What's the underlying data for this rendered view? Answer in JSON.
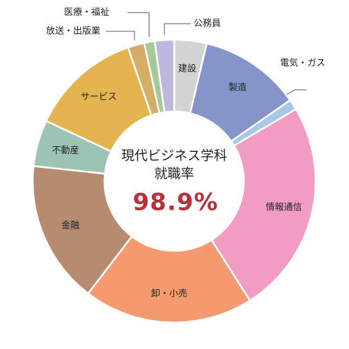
{
  "chart_data": {
    "type": "pie",
    "style": "donut",
    "start_angle_deg": 0,
    "direction": "clockwise",
    "center": {
      "title_line1": "現代ビジネス学科",
      "title_line2": "就職率",
      "rate": "98.9%",
      "rate_color": "#b5323a"
    },
    "slices": [
      {
        "label": "建設",
        "value": 3.7,
        "color": "#d3d3d3",
        "label_pos": "inside"
      },
      {
        "label": "製造",
        "value": 11.6,
        "color": "#8595c9",
        "label_pos": "inside"
      },
      {
        "label": "電気・ガス",
        "value": 1.2,
        "color": "#a9c8e9",
        "label_pos": "outside"
      },
      {
        "label": "情報通信",
        "value": 24.5,
        "color": "#f39cc3",
        "label_pos": "inside"
      },
      {
        "label": "卸・小売",
        "value": 19.4,
        "color": "#f59a6e",
        "label_pos": "inside"
      },
      {
        "label": "金融",
        "value": 16.3,
        "color": "#b78b70",
        "label_pos": "inside"
      },
      {
        "label": "不動産",
        "value": 5.3,
        "color": "#9cc3b3",
        "label_pos": "inside"
      },
      {
        "label": "サービス",
        "value": 12.7,
        "color": "#e5b450",
        "label_pos": "inside"
      },
      {
        "label": "放送・出版業",
        "value": 1.9,
        "color": "#d4ad6a",
        "label_pos": "outside"
      },
      {
        "label": "医療・福祉",
        "value": 1.2,
        "color": "#a6c89a",
        "label_pos": "outside"
      },
      {
        "label": "公務員",
        "value": 2.2,
        "color": "#bdb7dd",
        "label_pos": "outside"
      }
    ]
  }
}
